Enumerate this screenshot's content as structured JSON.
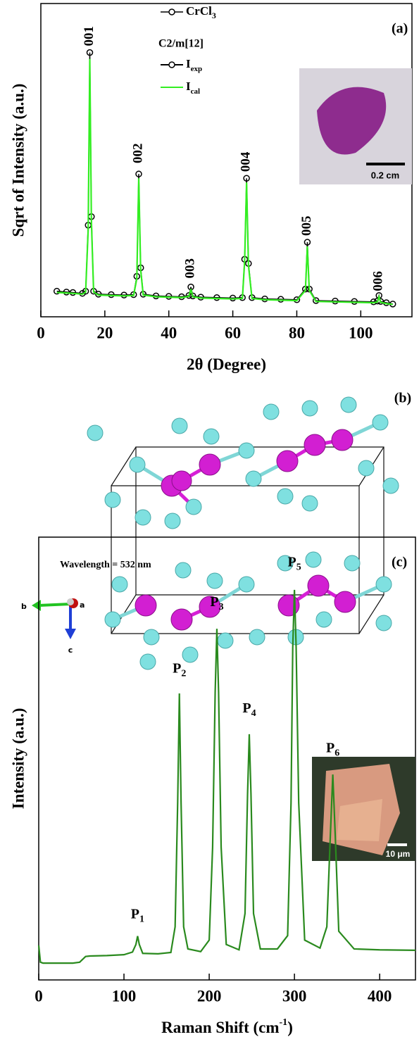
{
  "chart_data": [
    {
      "type": "line",
      "panel_label": "(a)",
      "ylabel": "Sqrt of Intensity (a.u.)",
      "xlabel": "2θ (Degree)",
      "xlim": [
        0,
        116
      ],
      "xticks": [
        0,
        20,
        40,
        60,
        80,
        100
      ],
      "ylim": [
        -0.15,
        7.2
      ],
      "x": [
        5,
        8,
        10,
        13,
        14,
        14.8,
        15.3,
        15.8,
        16.5,
        18,
        22,
        26,
        29,
        30,
        30.6,
        31.2,
        32,
        36,
        40,
        44,
        46.3,
        46.9,
        47.5,
        50,
        55,
        60,
        63,
        63.7,
        64.3,
        64.9,
        66,
        70,
        75,
        80,
        82.7,
        83.3,
        83.9,
        86,
        92,
        98,
        104,
        105.2,
        105.7,
        106.2,
        108,
        110
      ],
      "legend": {
        "title": "CrCl",
        "title_sub": "3",
        "subtitle": "C2/m[12]"
      },
      "series": [
        {
          "name": "I",
          "name_sub": "exp",
          "color": "#000000",
          "marker": "circle",
          "values": [
            0.45,
            0.43,
            0.42,
            0.4,
            0.45,
            2.0,
            6.05,
            2.2,
            0.45,
            0.38,
            0.37,
            0.36,
            0.37,
            0.8,
            3.2,
            1.0,
            0.38,
            0.34,
            0.33,
            0.32,
            0.35,
            0.55,
            0.34,
            0.31,
            0.3,
            0.29,
            0.3,
            1.2,
            3.1,
            1.1,
            0.3,
            0.27,
            0.26,
            0.25,
            0.5,
            1.6,
            0.5,
            0.23,
            0.22,
            0.21,
            0.2,
            0.22,
            0.35,
            0.21,
            0.18,
            0.15
          ]
        },
        {
          "name": "I",
          "name_sub": "cal",
          "color": "#33ee22",
          "values": [
            0.42,
            0.41,
            0.4,
            0.38,
            0.43,
            1.9,
            5.9,
            2.1,
            0.43,
            0.36,
            0.35,
            0.34,
            0.35,
            0.75,
            3.1,
            0.95,
            0.36,
            0.32,
            0.31,
            0.3,
            0.33,
            0.5,
            0.32,
            0.29,
            0.28,
            0.27,
            0.28,
            1.15,
            3.0,
            1.05,
            0.28,
            0.25,
            0.24,
            0.23,
            0.47,
            1.5,
            0.47,
            0.21,
            0.2,
            0.19,
            0.18,
            0.2,
            0.32,
            0.19,
            0.16,
            0.14
          ]
        }
      ],
      "annotations": [
        {
          "text": "001",
          "x": 15.3,
          "y": 6.2,
          "rotate": true
        },
        {
          "text": "002",
          "x": 30.6,
          "y": 3.45,
          "rotate": true
        },
        {
          "text": "003",
          "x": 46.9,
          "y": 0.75,
          "rotate": true
        },
        {
          "text": "004",
          "x": 64.3,
          "y": 3.25,
          "rotate": true
        },
        {
          "text": "005",
          "x": 83.3,
          "y": 1.75,
          "rotate": true
        },
        {
          "text": "006",
          "x": 105.7,
          "y": 0.45,
          "rotate": true
        }
      ],
      "inset_scale": "0.2 cm"
    },
    {
      "type": "line",
      "panel_label": "(c)",
      "ylabel": "Intensity (a.u.)",
      "xlabel": "Raman Shift (cm",
      "xlabel_sup": "-1",
      "xlabel_end": ")",
      "note": "Wavelength = 532 nm",
      "xlim": [
        0,
        442
      ],
      "xticks": [
        0,
        100,
        200,
        300,
        400
      ],
      "ylim": [
        0,
        100
      ],
      "x": [
        0,
        2,
        5,
        20,
        40,
        48,
        55,
        60,
        80,
        100,
        110,
        114,
        116,
        118,
        122,
        140,
        155,
        160,
        163,
        165,
        167,
        170,
        175,
        190,
        200,
        204,
        207,
        209,
        211,
        214,
        220,
        235,
        242,
        245,
        247,
        249,
        252,
        260,
        280,
        292,
        296,
        298,
        300,
        302,
        305,
        312,
        330,
        338,
        342,
        345,
        348,
        352,
        370,
        400,
        442
      ],
      "series": [
        {
          "color": "#2a8a1e",
          "values": [
            7.8,
            4.0,
            3.8,
            3.8,
            3.8,
            4.0,
            5.3,
            5.4,
            5.5,
            5.7,
            6.3,
            8.0,
            9.9,
            8.0,
            6.0,
            5.9,
            6.2,
            12,
            40,
            64.7,
            40,
            12,
            7,
            6.4,
            9,
            30,
            65,
            79.3,
            65,
            30,
            8,
            6.8,
            15,
            42,
            55.5,
            42,
            15,
            7,
            7,
            10,
            40,
            75,
            88.1,
            75,
            40,
            9,
            7.2,
            12,
            32,
            46.4,
            32,
            11,
            7,
            6.8,
            6.7
          ]
        }
      ],
      "annotations": [
        {
          "text": "P",
          "sub": "1",
          "x": 116,
          "y": 12.5
        },
        {
          "text": "P",
          "sub": "2",
          "x": 165,
          "y": 68
        },
        {
          "text": "P",
          "sub": "3",
          "x": 209,
          "y": 83
        },
        {
          "text": "P",
          "sub": "4",
          "x": 247,
          "y": 59
        },
        {
          "text": "P",
          "sub": "5",
          "x": 300,
          "y": 92
        },
        {
          "text": "P",
          "sub": "6",
          "x": 345,
          "y": 50
        }
      ],
      "inset_scale": "10 μm"
    }
  ],
  "structure": {
    "panel_label": "(b)",
    "axis_b": "b",
    "axis_a": "a",
    "axis_c": "c"
  }
}
